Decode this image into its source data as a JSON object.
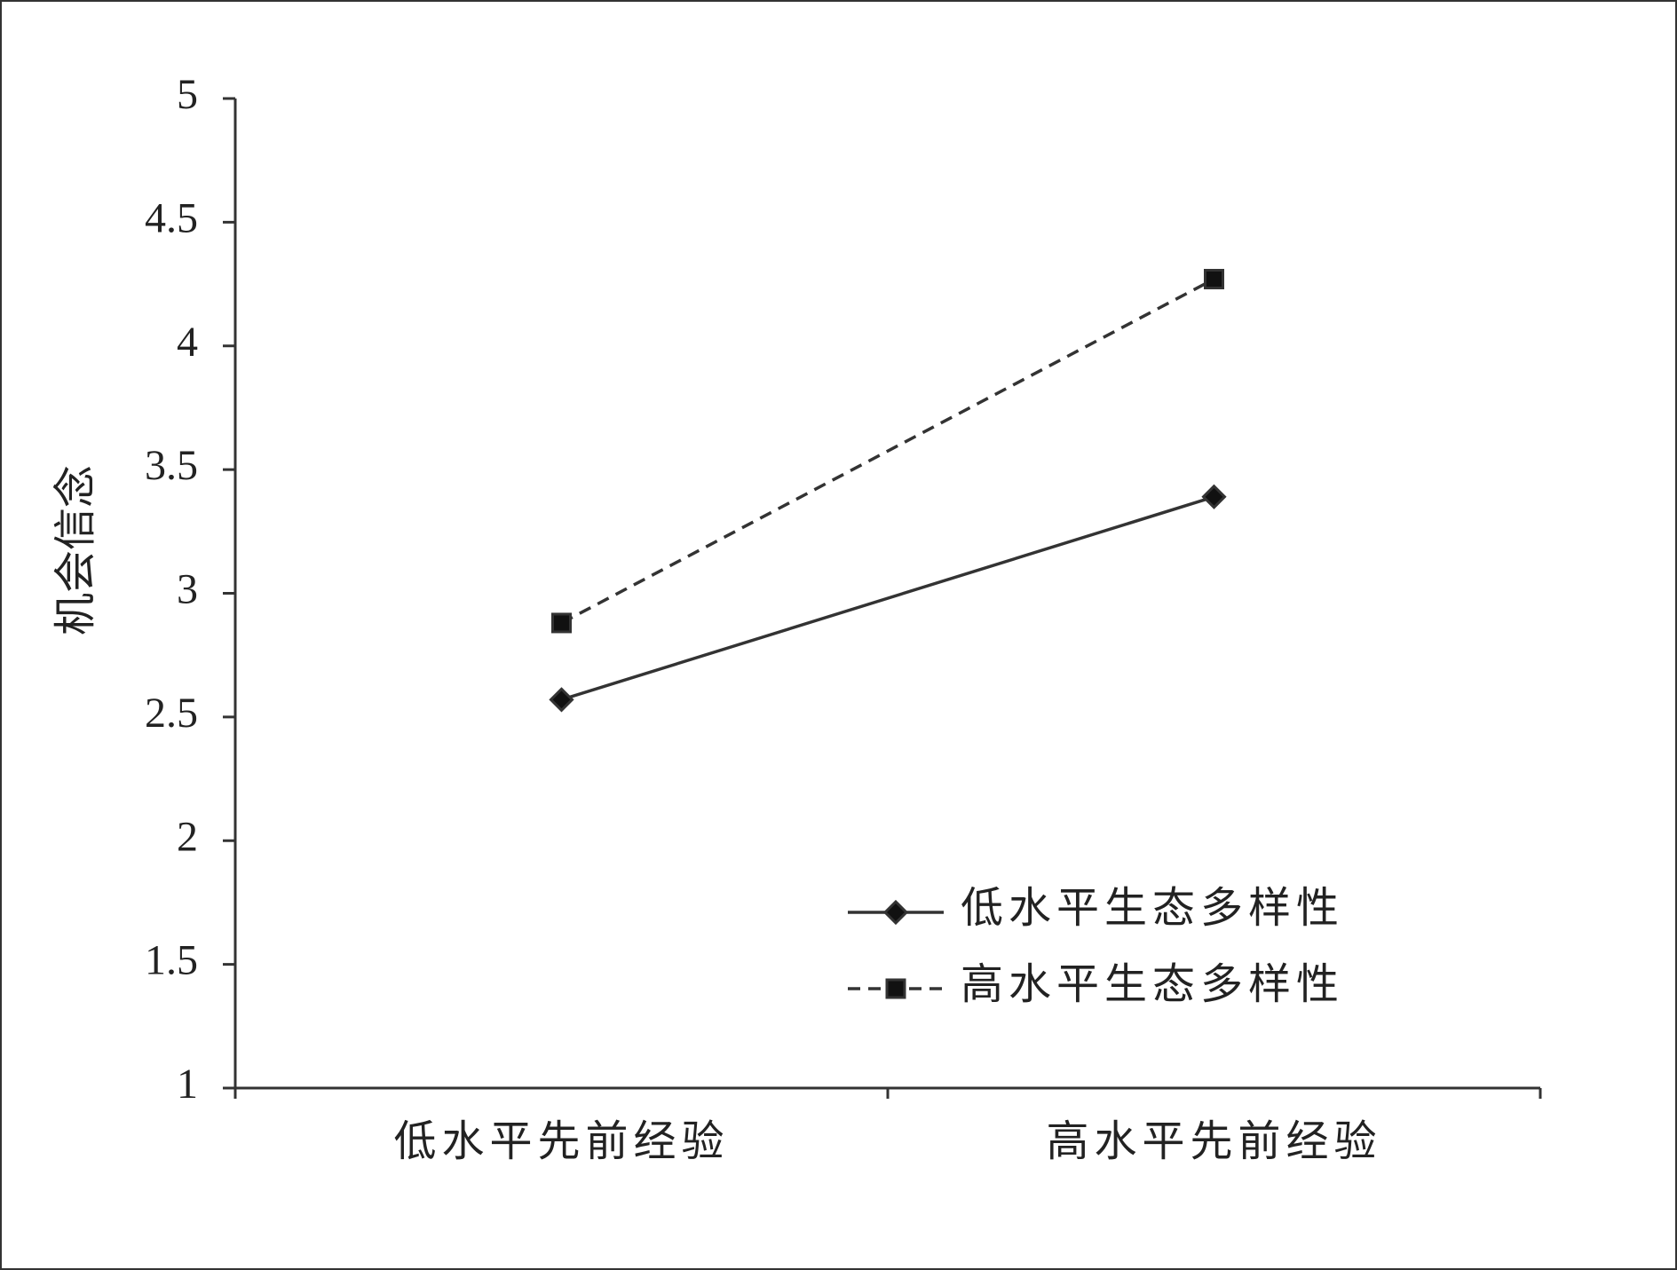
{
  "chart_data": {
    "type": "line",
    "ylabel": "机会信念",
    "categories": [
      "低水平先前经验",
      "高水平先前经验"
    ],
    "series": [
      {
        "name": "低水平生态多样性",
        "color": "#333333",
        "linestyle": "solid",
        "marker": "diamond",
        "values": [
          2.57,
          3.39
        ]
      },
      {
        "name": "高水平生态多样性",
        "color": "#333333",
        "linestyle": "dashed",
        "marker": "square",
        "values": [
          2.88,
          4.27
        ]
      }
    ],
    "ylim": [
      1,
      5
    ],
    "yticks": [
      1,
      1.5,
      2,
      2.5,
      3,
      3.5,
      4,
      4.5,
      5
    ],
    "legend": "lower right",
    "grid": false
  }
}
